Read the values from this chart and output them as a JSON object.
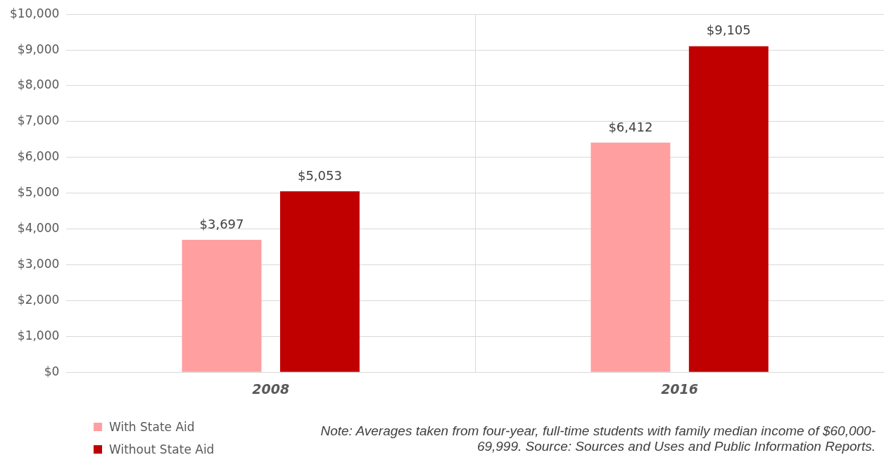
{
  "chart_data": {
    "type": "bar",
    "categories": [
      "2008",
      "2016"
    ],
    "series": [
      {
        "name": "With State Aid",
        "color": "#ff9f9f",
        "values": [
          3697,
          6412
        ],
        "value_labels": [
          "$3,697",
          "$6,412"
        ]
      },
      {
        "name": "Without State Aid",
        "color": "#c00000",
        "values": [
          5053,
          9105
        ],
        "value_labels": [
          "$5,053",
          "$9,105"
        ]
      }
    ],
    "ylim": [
      0,
      10000
    ],
    "yticks": [
      {
        "value": 0,
        "label": "$0"
      },
      {
        "value": 1000,
        "label": "$1,000"
      },
      {
        "value": 2000,
        "label": "$2,000"
      },
      {
        "value": 3000,
        "label": "$3,000"
      },
      {
        "value": 4000,
        "label": "$4,000"
      },
      {
        "value": 5000,
        "label": "$5,000"
      },
      {
        "value": 6000,
        "label": "$6,000"
      },
      {
        "value": 7000,
        "label": "$7,000"
      },
      {
        "value": 8000,
        "label": "$8,000"
      },
      {
        "value": 9000,
        "label": "$9,000"
      },
      {
        "value": 10000,
        "label": "$10,000"
      }
    ],
    "grid": true,
    "legend": "bottom left",
    "annotations": [
      "Note: Averages taken from four-year, full-time students with family median income of $60,000-69,999. Source: Sources and Uses and Public Information Reports."
    ]
  }
}
